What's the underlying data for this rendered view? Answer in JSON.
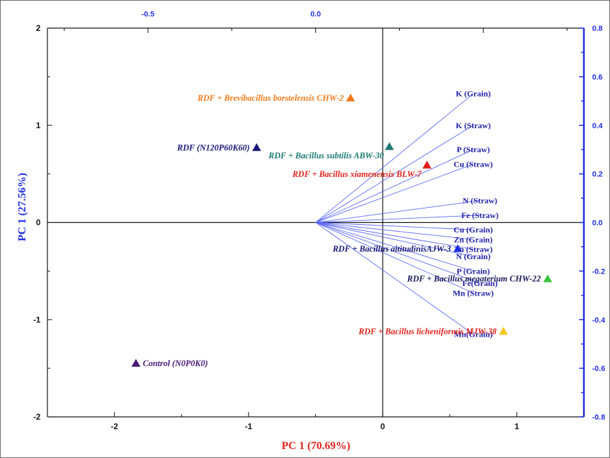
{
  "chart_data": {
    "type": "scatter",
    "subtype": "pca-biplot",
    "title": "",
    "xlabel": "PC 1 (70.69%)",
    "ylabel": "PC 1 (27.56%)",
    "xlim": [
      -2.5,
      1.5
    ],
    "ylim": [
      -2,
      2
    ],
    "x_ticks": [
      -2,
      -1,
      0,
      1
    ],
    "y_ticks": [
      -2,
      -1,
      0,
      1,
      2
    ],
    "top_axis": {
      "lim": [
        -0.8,
        0.8
      ],
      "ticks": [
        -0.5,
        0.0
      ],
      "tick_labels": [
        "-0.5",
        "0.0"
      ],
      "color": "#1f2ee0"
    },
    "right_axis": {
      "lim": [
        -0.8,
        0.8
      ],
      "ticks": [
        0.8,
        0.6,
        0.4,
        0.2,
        0.0,
        -0.2,
        -0.4,
        -0.6,
        -0.8
      ],
      "tick_labels": [
        "0.8",
        "0.6",
        "0.4",
        "0.2",
        "0.0",
        "-0.2",
        "-0.4",
        "-0.6",
        "-0.8"
      ],
      "color": "#1f2ee0"
    },
    "grid": false,
    "points": [
      {
        "label": "RDF + Brevibacillus borstelensis CHW-2",
        "x": -0.24,
        "y": 1.28,
        "color": "#f07a1a",
        "label_color": "#f07a1a",
        "label_side": "left"
      },
      {
        "label": "RDF (N120P60K60)",
        "x": -0.94,
        "y": 0.77,
        "color": "#1a1a7a",
        "label_color": "#1a1a7a",
        "label_side": "left"
      },
      {
        "label": "RDF + Bacillus subtilis ABW-30",
        "x": 0.05,
        "y": 0.78,
        "color": "#1c7a72",
        "label_color": "#1c7a72",
        "label_side": "left-below"
      },
      {
        "label": "RDF + Bacillus xiamenensis BLW-7",
        "x": 0.33,
        "y": 0.59,
        "color": "#e0211a",
        "label_color": "#e0211a",
        "label_side": "left-below"
      },
      {
        "label": "RDF + Bacillus aititudinisAJW-3",
        "x": 0.56,
        "y": -0.27,
        "color": "#1f2ee0",
        "label_color": "#1a1a7a",
        "label_side": "left"
      },
      {
        "label": "RDF + Bacillus megaterium CHW-22",
        "x": 1.23,
        "y": -0.58,
        "color": "#3cc43c",
        "label_color": "#1a1a5a",
        "label_side": "left"
      },
      {
        "label": "RDF + Bacillus licheniformis MJW-38",
        "x": 0.9,
        "y": -1.12,
        "color": "#f5c518",
        "label_color": "#e0211a",
        "label_side": "left"
      },
      {
        "label": "Control (N0P0K0)",
        "x": -1.84,
        "y": -1.45,
        "color": "#4a1a7a",
        "label_color": "#4a1a7a",
        "label_side": "right"
      }
    ],
    "loadings": [
      {
        "label": "K (Grain)",
        "x": 0.47,
        "y": 0.53
      },
      {
        "label": "K (Straw)",
        "x": 0.47,
        "y": 0.4
      },
      {
        "label": "P (Straw)",
        "x": 0.47,
        "y": 0.3
      },
      {
        "label": "Cu (Straw)",
        "x": 0.47,
        "y": 0.24
      },
      {
        "label": "N (Straw)",
        "x": 0.49,
        "y": 0.09
      },
      {
        "label": "Fe (Straw)",
        "x": 0.49,
        "y": 0.03
      },
      {
        "label": "Cu (Grain)",
        "x": 0.47,
        "y": -0.03
      },
      {
        "label": "Zn (Grain)",
        "x": 0.47,
        "y": -0.07
      },
      {
        "label": "Zn (Straw)",
        "x": 0.47,
        "y": -0.11
      },
      {
        "label": "N (Grain)",
        "x": 0.47,
        "y": -0.14
      },
      {
        "label": "P (Grain)",
        "x": 0.47,
        "y": -0.2
      },
      {
        "label": "Fe(Grain)",
        "x": 0.49,
        "y": -0.25
      },
      {
        "label": "Mn (Straw)",
        "x": 0.47,
        "y": -0.29
      },
      {
        "label": "Mn(Grain)",
        "x": 0.47,
        "y": -0.46
      }
    ],
    "loading_color": "#5a6af0",
    "axis_color_main": "#111111",
    "axis_color_secondary": "#1f2ee0"
  }
}
